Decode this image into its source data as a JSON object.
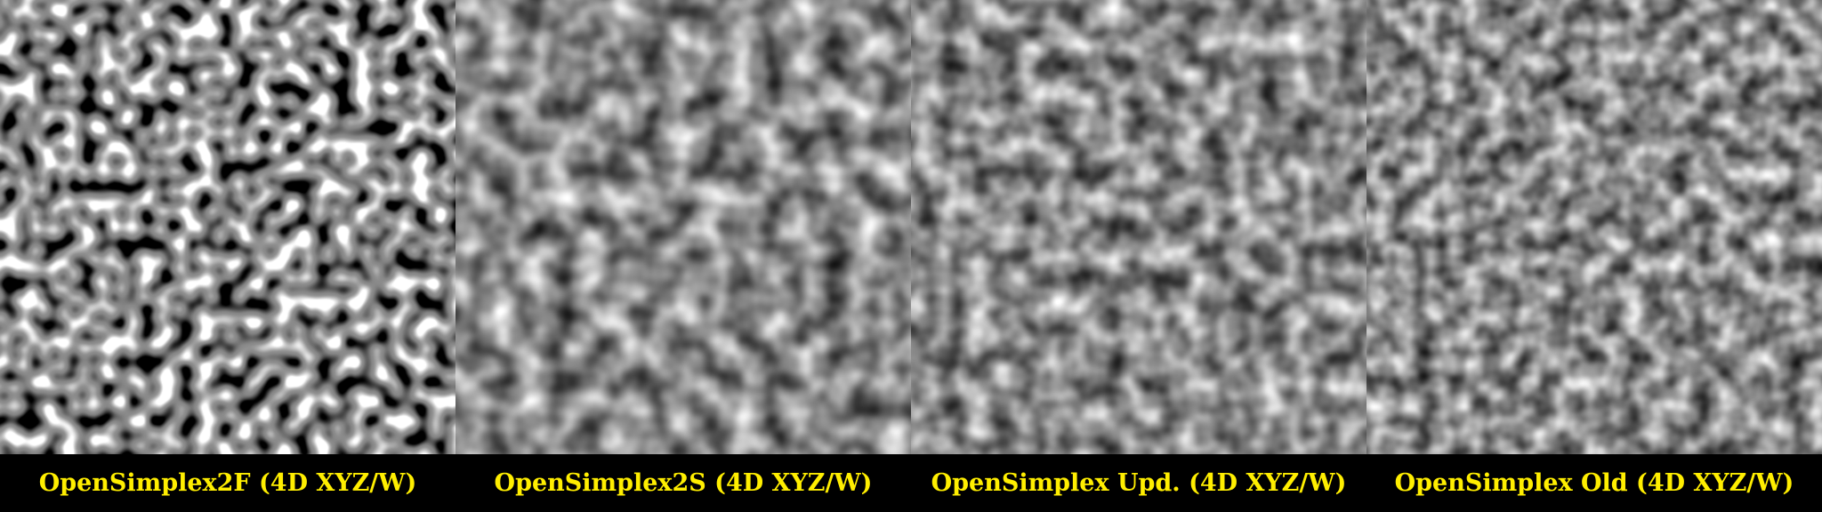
{
  "panels": [
    {
      "label": "OpenSimplex2F (4D XYZ/W)",
      "style": "spotty"
    },
    {
      "label": "OpenSimplex2S (4D XYZ/W)",
      "style": "smooth"
    },
    {
      "label": "OpenSimplex Upd. (4D XYZ/W)",
      "style": "smooth"
    },
    {
      "label": "OpenSimplex Old (4D XYZ/W)",
      "style": "smooth"
    }
  ],
  "colors": {
    "background": "#000000",
    "caption_text": "#ffee00",
    "noise_mid": "#8a8a8a"
  }
}
